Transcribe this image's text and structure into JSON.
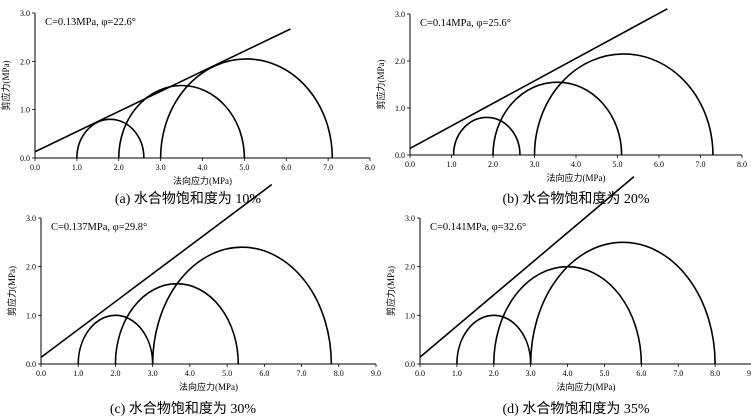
{
  "chart_data": [
    {
      "type": "line",
      "title": "",
      "caption": "(a)  水合物饱和度为 10%",
      "param_label": "C=0.13MPa, φ=22.6°",
      "xlabel": "法向应力(MPa)",
      "ylabel": "剪应力(MPa)",
      "xlim": [
        0,
        8
      ],
      "ylim": [
        0,
        3
      ],
      "x_ticks": [
        0,
        1,
        2,
        3,
        4,
        5,
        6,
        7,
        8
      ],
      "x_tick_labels": [
        "0.0",
        "1.0",
        "2.0",
        "3.0",
        "4.0",
        "5.0",
        "6.0",
        "7.0",
        "8.0"
      ],
      "y_ticks": [
        0,
        1,
        2,
        3
      ],
      "y_tick_labels": [
        "0.0",
        "1.0",
        "2.0",
        "3.0"
      ],
      "envelope": {
        "c": 0.13,
        "phi_deg": 22.6,
        "x_range": [
          0,
          6.1
        ]
      },
      "circles": [
        {
          "sigma3": 1.0,
          "sigma1": 2.6
        },
        {
          "sigma3": 2.0,
          "sigma1": 5.0
        },
        {
          "sigma3": 3.0,
          "sigma1": 7.1
        }
      ]
    },
    {
      "type": "line",
      "title": "",
      "caption": "(b)  水合物饱和度为 20%",
      "param_label": "C=0.14MPa, φ=25.6°",
      "xlabel": "法向应力(MPa)",
      "ylabel": "剪应力(MPa)",
      "xlim": [
        0,
        8
      ],
      "ylim": [
        0,
        3
      ],
      "x_ticks": [
        0,
        1,
        2,
        3,
        4,
        5,
        6,
        7,
        8
      ],
      "x_tick_labels": [
        "0.0",
        "1.0",
        "2.0",
        "3.0",
        "4.0",
        "5.0",
        "6.0",
        "7.0",
        "8.0"
      ],
      "y_ticks": [
        0,
        1,
        2,
        3
      ],
      "y_tick_labels": [
        "0.0",
        "1.0",
        "2.0",
        "3.0"
      ],
      "envelope": {
        "c": 0.14,
        "phi_deg": 25.6,
        "x_range": [
          0,
          6.2
        ]
      },
      "circles": [
        {
          "sigma3": 1.05,
          "sigma1": 2.65
        },
        {
          "sigma3": 2.0,
          "sigma1": 5.1
        },
        {
          "sigma3": 3.0,
          "sigma1": 7.3
        }
      ]
    },
    {
      "type": "line",
      "title": "",
      "caption": "(c)  水合物饱和度为 30%",
      "param_label": "C=0.137MPa, φ=29.8°",
      "xlabel": "法向应力(MPa)",
      "ylabel": "剪应力(MPa)",
      "xlim": [
        0,
        9
      ],
      "ylim": [
        0,
        3
      ],
      "x_ticks": [
        0,
        1,
        2,
        3,
        4,
        5,
        6,
        7,
        8,
        9
      ],
      "x_tick_labels": [
        "0.0",
        "1.0",
        "2.0",
        "3.0",
        "4.0",
        "5.0",
        "6.0",
        "7.0",
        "8.0",
        "9.0"
      ],
      "y_ticks": [
        0,
        1,
        2,
        3
      ],
      "y_tick_labels": [
        "0.0",
        "1.0",
        "2.0",
        "3.0"
      ],
      "envelope": {
        "c": 0.137,
        "phi_deg": 29.8,
        "x_range": [
          0,
          6.2
        ]
      },
      "circles": [
        {
          "sigma3": 1.0,
          "sigma1": 3.0
        },
        {
          "sigma3": 2.0,
          "sigma1": 5.3
        },
        {
          "sigma3": 3.0,
          "sigma1": 7.8
        }
      ]
    },
    {
      "type": "line",
      "title": "",
      "caption": "(d)  水合物饱和度为 35%",
      "param_label": "C=0.141MPa, φ=32.6°",
      "xlabel": "法向应力(MPa)",
      "ylabel": "剪应力(MPa)",
      "xlim": [
        0,
        9
      ],
      "ylim": [
        0,
        3
      ],
      "x_ticks": [
        0,
        1,
        2,
        3,
        4,
        5,
        6,
        7,
        8,
        9
      ],
      "x_tick_labels": [
        "0.0",
        "1.0",
        "2.0",
        "3.0",
        "4.0",
        "5.0",
        "6.0",
        "7.0",
        "8.0",
        "9.0"
      ],
      "y_ticks": [
        0,
        1,
        2,
        3
      ],
      "y_tick_labels": [
        "0.0",
        "1.0",
        "2.0",
        "3.0"
      ],
      "envelope": {
        "c": 0.141,
        "phi_deg": 32.6,
        "x_range": [
          0,
          5.8
        ]
      },
      "circles": [
        {
          "sigma3": 1.0,
          "sigma1": 3.0
        },
        {
          "sigma3": 2.0,
          "sigma1": 6.0
        },
        {
          "sigma3": 3.0,
          "sigma1": 8.0
        }
      ]
    }
  ]
}
